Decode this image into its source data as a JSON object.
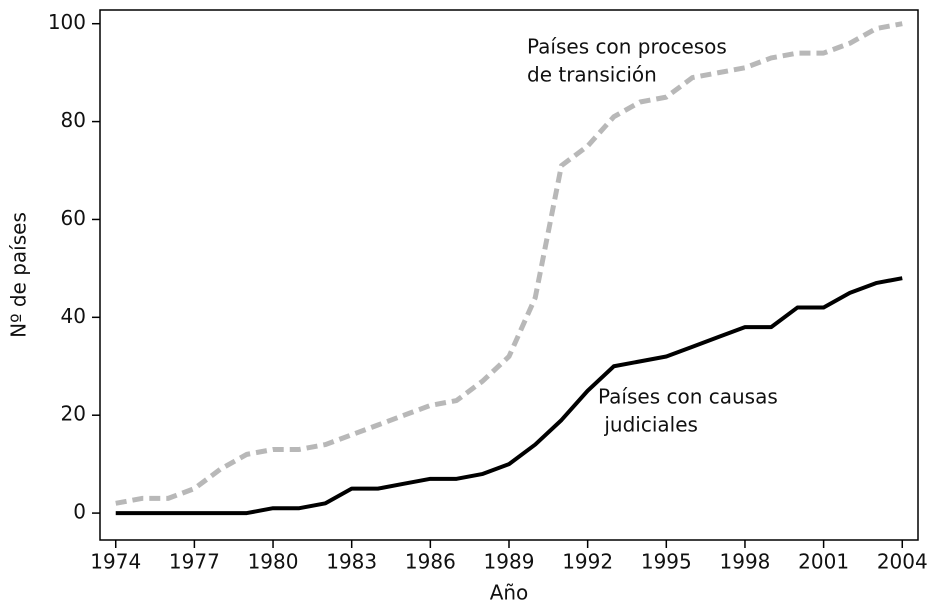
{
  "chart_data": {
    "type": "line",
    "xlabel": "Año",
    "ylabel": "Nº de países",
    "x": [
      1974,
      1975,
      1976,
      1977,
      1978,
      1979,
      1980,
      1981,
      1982,
      1983,
      1984,
      1985,
      1986,
      1987,
      1988,
      1989,
      1990,
      1991,
      1992,
      1993,
      1994,
      1995,
      1996,
      1997,
      1998,
      1999,
      2000,
      2001,
      2002,
      2003,
      2004
    ],
    "series": [
      {
        "color": "#b8b8b8",
        "dashed": true,
        "values": [
          2,
          3,
          3,
          5,
          9,
          12,
          13,
          13,
          14,
          16,
          18,
          20,
          22,
          23,
          27,
          32,
          44,
          71,
          75,
          81,
          84,
          85,
          89,
          90,
          91,
          93,
          94,
          94,
          96,
          99,
          100
        ]
      },
      {
        "color": "#000000",
        "dashed": false,
        "values": [
          0,
          0,
          0,
          0,
          0,
          0,
          1,
          1,
          2,
          5,
          5,
          6,
          7,
          7,
          8,
          10,
          14,
          19,
          25,
          30,
          31,
          32,
          34,
          36,
          38,
          38,
          42,
          42,
          45,
          47,
          48
        ]
      }
    ],
    "annotations": [
      {
        "lines": [
          "Países con procesos",
          "de transición"
        ]
      },
      {
        "lines": [
          "Países con causas",
          " judiciales"
        ]
      }
    ],
    "xlim": [
      1973.4,
      2004.6
    ],
    "xticks": [
      1974,
      1977,
      1980,
      1983,
      1986,
      1989,
      1992,
      1995,
      1998,
      2001,
      2004
    ],
    "ylim": [
      -5.5,
      102.8
    ],
    "yticks": [
      0,
      20,
      40,
      60,
      80,
      100
    ],
    "grid": false
  }
}
